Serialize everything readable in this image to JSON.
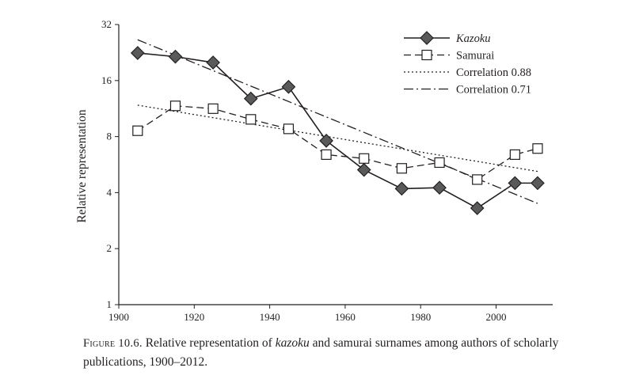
{
  "chart_data": {
    "type": "line",
    "xlabel": "",
    "ylabel": "Relative representation",
    "xlim": [
      1900,
      2015
    ],
    "ylim": [
      1,
      32
    ],
    "yscale": "log2",
    "xticks": [
      1900,
      1920,
      1940,
      1960,
      1980,
      2000
    ],
    "yticks": [
      1,
      2,
      4,
      8,
      16,
      32
    ],
    "legend_position": "top-right",
    "series": [
      {
        "name": "Kazoku",
        "style": "solid",
        "marker": "diamond-filled",
        "color": "#5a5a5a",
        "x": [
          1905,
          1915,
          1925,
          1935,
          1945,
          1955,
          1965,
          1975,
          1985,
          1995,
          2005,
          2011
        ],
        "y": [
          22.5,
          21.5,
          20.0,
          12.8,
          14.8,
          7.6,
          5.3,
          4.2,
          4.25,
          3.3,
          4.5,
          4.5
        ]
      },
      {
        "name": "Samurai",
        "style": "dashed",
        "marker": "square-open",
        "color": "#ffffff",
        "x": [
          1905,
          1915,
          1925,
          1935,
          1945,
          1955,
          1965,
          1975,
          1985,
          1995,
          2005,
          2011
        ],
        "y": [
          8.6,
          11.7,
          11.3,
          9.9,
          8.8,
          6.4,
          6.1,
          5.4,
          5.8,
          4.7,
          6.4,
          6.9
        ]
      },
      {
        "name": "Correlation 0.88",
        "style": "dotted",
        "marker": "none",
        "x": [
          1905,
          2011
        ],
        "y": [
          11.8,
          5.2
        ]
      },
      {
        "name": "Correlation 0.71",
        "style": "dashdot",
        "marker": "none",
        "x": [
          1905,
          2011
        ],
        "y": [
          26.5,
          3.5
        ]
      }
    ]
  },
  "caption": {
    "label": "Figure 10.6.",
    "text_1": " Relative representation of ",
    "italic": "kazoku",
    "text_2": " and samurai surnames among authors of scholarly publications, 1900–2012."
  }
}
